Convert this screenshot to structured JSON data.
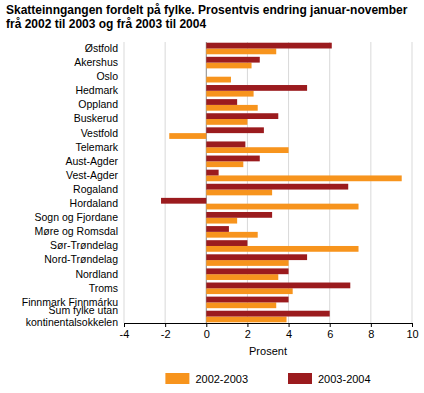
{
  "chart_data": {
    "type": "bar",
    "orientation": "horizontal",
    "title": "Skatteinngangen fordelt på fylke. Prosentvis endring januar-november frå 2002 til 2003 og frå 2003 til 2004",
    "xlabel": "Prosent",
    "categories": [
      "Østfold",
      "Akershus",
      "Oslo",
      "Hedmark",
      "Oppland",
      "Buskerud",
      "Vestfold",
      "Telemark",
      "Aust-Agder",
      "Vest-Agder",
      "Rogaland",
      "Hordaland",
      "Sogn og Fjordane",
      "Møre og Romsdal",
      "Sør-Trøndelag",
      "Nord-Trøndelag",
      "Nordland",
      "Troms",
      "Finnmark Finnmárku",
      "Sum fylke utan kontinentalsokkelen"
    ],
    "series": [
      {
        "name": "2002-2003",
        "color": "#f7941d",
        "values": [
          3.4,
          2.2,
          1.2,
          2.3,
          2.5,
          2.0,
          -1.8,
          4.0,
          1.8,
          9.5,
          3.2,
          7.4,
          1.5,
          2.5,
          7.4,
          4.0,
          3.5,
          4.2,
          3.4,
          3.9
        ]
      },
      {
        "name": "2003-2004",
        "color": "#9b1b1e",
        "values": [
          6.1,
          2.6,
          0,
          4.9,
          1.5,
          3.5,
          2.8,
          1.9,
          2.6,
          0.6,
          6.9,
          -2.2,
          3.2,
          1.1,
          2.0,
          4.9,
          4.0,
          7.0,
          4.0,
          6.0
        ]
      }
    ],
    "xlim": [
      -4,
      10
    ],
    "xticks": [
      -4,
      -2,
      0,
      2,
      4,
      6,
      8,
      10
    ],
    "grid": true,
    "legend": "bottom"
  }
}
